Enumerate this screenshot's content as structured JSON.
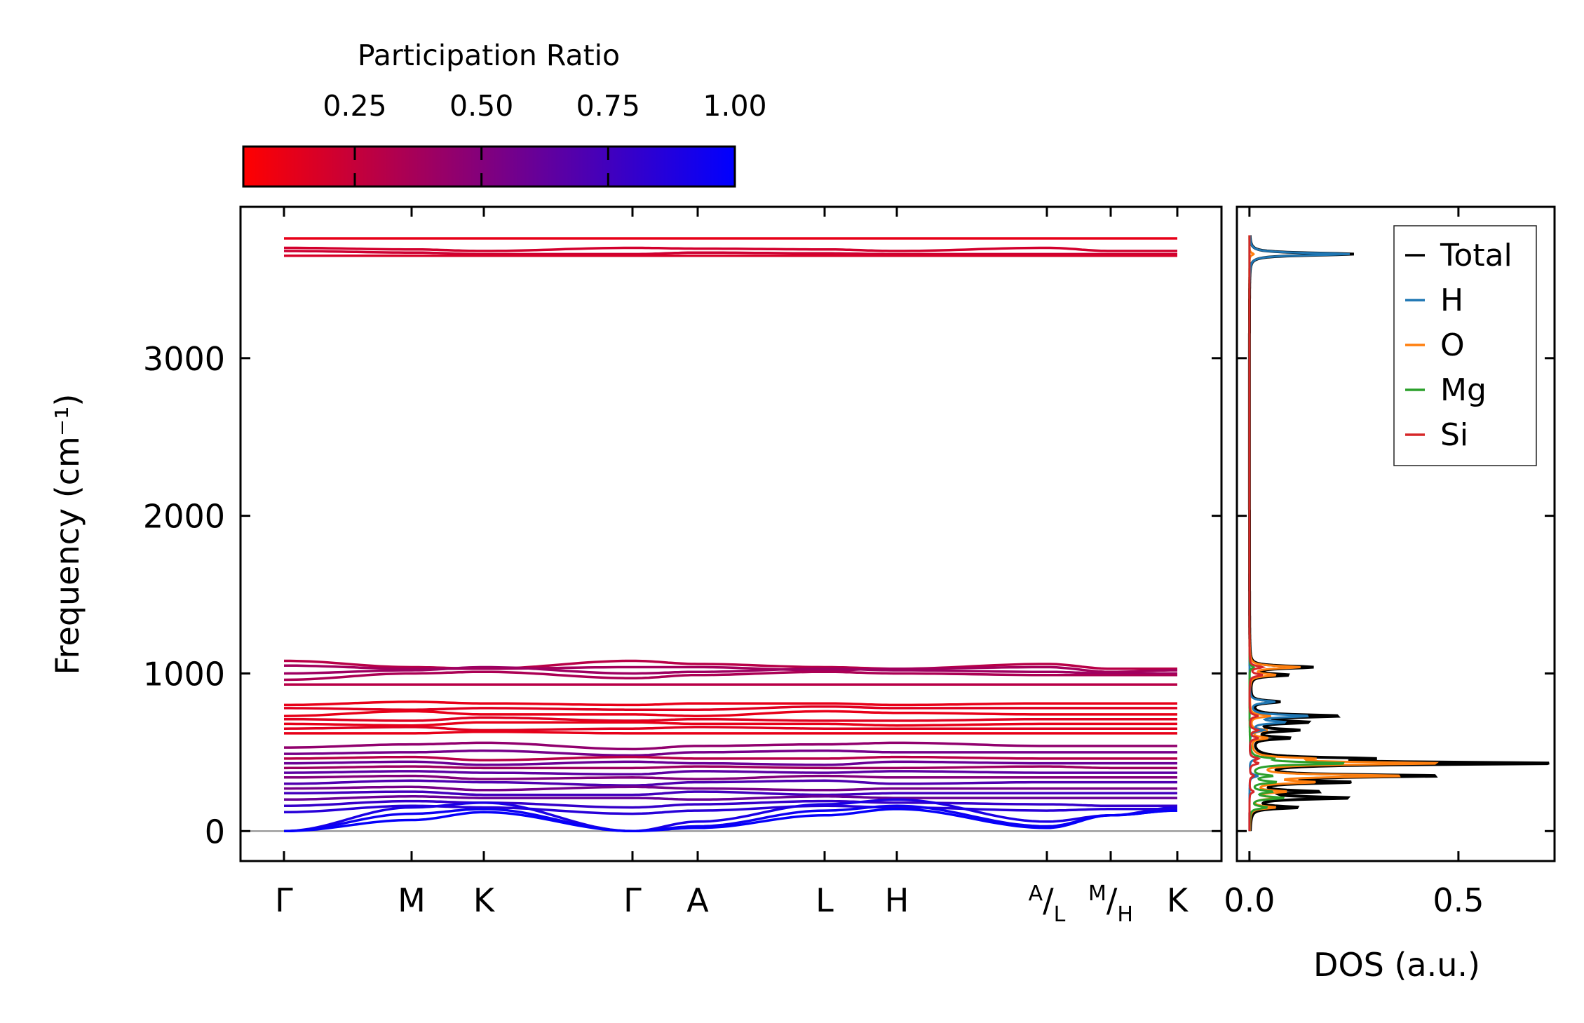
{
  "chart_data": [
    {
      "type": "line",
      "title": "",
      "xlabel": "",
      "ylabel": "Frequency (cm⁻¹)",
      "ylim": [
        -190,
        3960
      ],
      "yticks": [
        0,
        1000,
        2000,
        3000
      ],
      "xtick_labels": [
        "Γ",
        "M",
        "K",
        "Γ",
        "A",
        "L",
        "H",
        "A|L",
        "M|H",
        "K"
      ],
      "xtick_positions": [
        0,
        1.23,
        1.95,
        3.42,
        4.05,
        5.29,
        6.01,
        7.45,
        8.35,
        9.28
      ],
      "colorbar": {
        "label": "Participation Ratio",
        "range": [
          0.03,
          1.0
        ],
        "ticks": [
          0.25,
          0.5,
          0.75,
          1.0
        ],
        "tick_labels": [
          "0.25",
          "0.50",
          "0.75",
          "1.00"
        ],
        "color_low": "#ff0000",
        "color_high": "#0000ff"
      },
      "bands": [
        {
          "pr": 0.12,
          "f": [
            3760,
            3760,
            3760,
            3760,
            3760,
            3760,
            3760,
            3760,
            3760,
            3760
          ]
        },
        {
          "pr": 0.2,
          "f": [
            3700,
            3690,
            3680,
            3700,
            3695,
            3690,
            3680,
            3700,
            3680,
            3680
          ]
        },
        {
          "pr": 0.22,
          "f": [
            3680,
            3670,
            3660,
            3660,
            3670,
            3665,
            3660,
            3660,
            3660,
            3660
          ]
        },
        {
          "pr": 0.18,
          "f": [
            3650,
            3650,
            3650,
            3650,
            3650,
            3650,
            3650,
            3650,
            3650,
            3650
          ]
        },
        {
          "pr": 0.3,
          "f": [
            1080,
            1040,
            1030,
            1080,
            1060,
            1040,
            1030,
            1060,
            1030,
            1030
          ]
        },
        {
          "pr": 0.38,
          "f": [
            1050,
            1030,
            1030,
            1040,
            1040,
            1020,
            1030,
            1040,
            1010,
            1020
          ]
        },
        {
          "pr": 0.4,
          "f": [
            1000,
            1020,
            1040,
            1000,
            1010,
            1030,
            1020,
            1010,
            1000,
            1000
          ]
        },
        {
          "pr": 0.35,
          "f": [
            960,
            1000,
            1010,
            970,
            990,
            1010,
            1000,
            990,
            990,
            990
          ]
        },
        {
          "pr": 0.3,
          "f": [
            930,
            930,
            930,
            930,
            930,
            930,
            930,
            930,
            930,
            930
          ]
        },
        {
          "pr": 0.12,
          "f": [
            800,
            820,
            810,
            800,
            810,
            810,
            800,
            810,
            810,
            810
          ]
        },
        {
          "pr": 0.15,
          "f": [
            780,
            770,
            780,
            770,
            770,
            790,
            780,
            780,
            780,
            780
          ]
        },
        {
          "pr": 0.12,
          "f": [
            730,
            760,
            740,
            740,
            730,
            760,
            750,
            740,
            740,
            740
          ]
        },
        {
          "pr": 0.15,
          "f": [
            710,
            700,
            720,
            700,
            710,
            700,
            700,
            710,
            710,
            710
          ]
        },
        {
          "pr": 0.12,
          "f": [
            680,
            670,
            690,
            690,
            680,
            680,
            670,
            680,
            680,
            680
          ]
        },
        {
          "pr": 0.15,
          "f": [
            650,
            660,
            640,
            650,
            660,
            650,
            650,
            650,
            650,
            650
          ]
        },
        {
          "pr": 0.12,
          "f": [
            620,
            620,
            630,
            620,
            620,
            620,
            620,
            620,
            620,
            620
          ]
        },
        {
          "pr": 0.45,
          "f": [
            530,
            550,
            560,
            520,
            540,
            550,
            560,
            540,
            540,
            540
          ]
        },
        {
          "pr": 0.55,
          "f": [
            490,
            500,
            510,
            480,
            500,
            510,
            500,
            500,
            500,
            500
          ]
        },
        {
          "pr": 0.3,
          "f": [
            460,
            470,
            450,
            470,
            460,
            460,
            470,
            460,
            460,
            460
          ]
        },
        {
          "pr": 0.6,
          "f": [
            430,
            440,
            420,
            440,
            430,
            420,
            440,
            430,
            430,
            430
          ]
        },
        {
          "pr": 0.4,
          "f": [
            400,
            410,
            400,
            400,
            410,
            400,
            400,
            410,
            400,
            400
          ]
        },
        {
          "pr": 0.65,
          "f": [
            370,
            380,
            370,
            360,
            380,
            370,
            380,
            370,
            370,
            370
          ]
        },
        {
          "pr": 0.5,
          "f": [
            340,
            350,
            330,
            340,
            330,
            350,
            340,
            340,
            340,
            340
          ]
        },
        {
          "pr": 0.7,
          "f": [
            300,
            320,
            310,
            290,
            310,
            320,
            300,
            310,
            310,
            310
          ]
        },
        {
          "pr": 0.55,
          "f": [
            270,
            280,
            260,
            280,
            270,
            260,
            270,
            270,
            270,
            270
          ]
        },
        {
          "pr": 0.75,
          "f": [
            240,
            250,
            230,
            230,
            250,
            230,
            240,
            240,
            240,
            240
          ]
        },
        {
          "pr": 0.6,
          "f": [
            200,
            220,
            210,
            210,
            200,
            220,
            210,
            210,
            210,
            210
          ]
        },
        {
          "pr": 0.8,
          "f": [
            160,
            190,
            180,
            150,
            170,
            190,
            180,
            170,
            160,
            160
          ]
        },
        {
          "pr": 0.85,
          "f": [
            120,
            160,
            150,
            110,
            130,
            160,
            150,
            130,
            140,
            140
          ]
        },
        {
          "pr": 0.9,
          "f": [
            0,
            150,
            180,
            0,
            60,
            170,
            200,
            60,
            100,
            150
          ]
        },
        {
          "pr": 0.95,
          "f": [
            0,
            110,
            140,
            0,
            30,
            130,
            160,
            30,
            100,
            130
          ]
        },
        {
          "pr": 0.98,
          "f": [
            0,
            70,
            120,
            0,
            20,
            100,
            140,
            20,
            100,
            130
          ]
        }
      ]
    },
    {
      "type": "line",
      "xlabel": "DOS (a.u.)",
      "xlim": [
        -0.03,
        0.73
      ],
      "xticks": [
        0.0,
        0.5
      ],
      "xtick_labels": [
        "0.0",
        "0.5"
      ],
      "legend_position": "top-right",
      "series": [
        {
          "name": "Total",
          "color": "#000000",
          "peaks": [
            [
              3660,
              0.25
            ],
            [
              1040,
              0.15
            ],
            [
              990,
              0.09
            ],
            [
              820,
              0.07
            ],
            [
              730,
              0.21
            ],
            [
              690,
              0.13
            ],
            [
              640,
              0.11
            ],
            [
              590,
              0.09
            ],
            [
              460,
              0.24
            ],
            [
              430,
              0.72
            ],
            [
              350,
              0.44
            ],
            [
              310,
              0.22
            ],
            [
              250,
              0.15
            ],
            [
              210,
              0.23
            ],
            [
              150,
              0.11
            ]
          ]
        },
        {
          "name": "H",
          "color": "#1f77b4",
          "peaks": [
            [
              3660,
              0.24
            ],
            [
              820,
              0.06
            ],
            [
              730,
              0.14
            ],
            [
              690,
              0.08
            ],
            [
              640,
              0.03
            ],
            [
              460,
              0.02
            ],
            [
              350,
              0.02
            ]
          ]
        },
        {
          "name": "O",
          "color": "#ff7f0e",
          "peaks": [
            [
              3660,
              0.01
            ],
            [
              1040,
              0.12
            ],
            [
              990,
              0.06
            ],
            [
              730,
              0.05
            ],
            [
              640,
              0.04
            ],
            [
              590,
              0.04
            ],
            [
              460,
              0.12
            ],
            [
              430,
              0.45
            ],
            [
              350,
              0.36
            ],
            [
              310,
              0.14
            ],
            [
              250,
              0.08
            ],
            [
              210,
              0.06
            ],
            [
              150,
              0.06
            ]
          ]
        },
        {
          "name": "Mg",
          "color": "#2ca02c",
          "peaks": [
            [
              1040,
              0.01
            ],
            [
              460,
              0.04
            ],
            [
              430,
              0.23
            ],
            [
              350,
              0.05
            ],
            [
              310,
              0.06
            ],
            [
              250,
              0.05
            ],
            [
              210,
              0.08
            ],
            [
              150,
              0.04
            ]
          ]
        },
        {
          "name": "Si",
          "color": "#d62728",
          "peaks": [
            [
              1040,
              0.03
            ],
            [
              990,
              0.03
            ],
            [
              730,
              0.02
            ],
            [
              640,
              0.02
            ],
            [
              590,
              0.02
            ],
            [
              460,
              0.02
            ],
            [
              430,
              0.02
            ],
            [
              350,
              0.01
            ],
            [
              250,
              0.01
            ]
          ]
        }
      ]
    }
  ]
}
